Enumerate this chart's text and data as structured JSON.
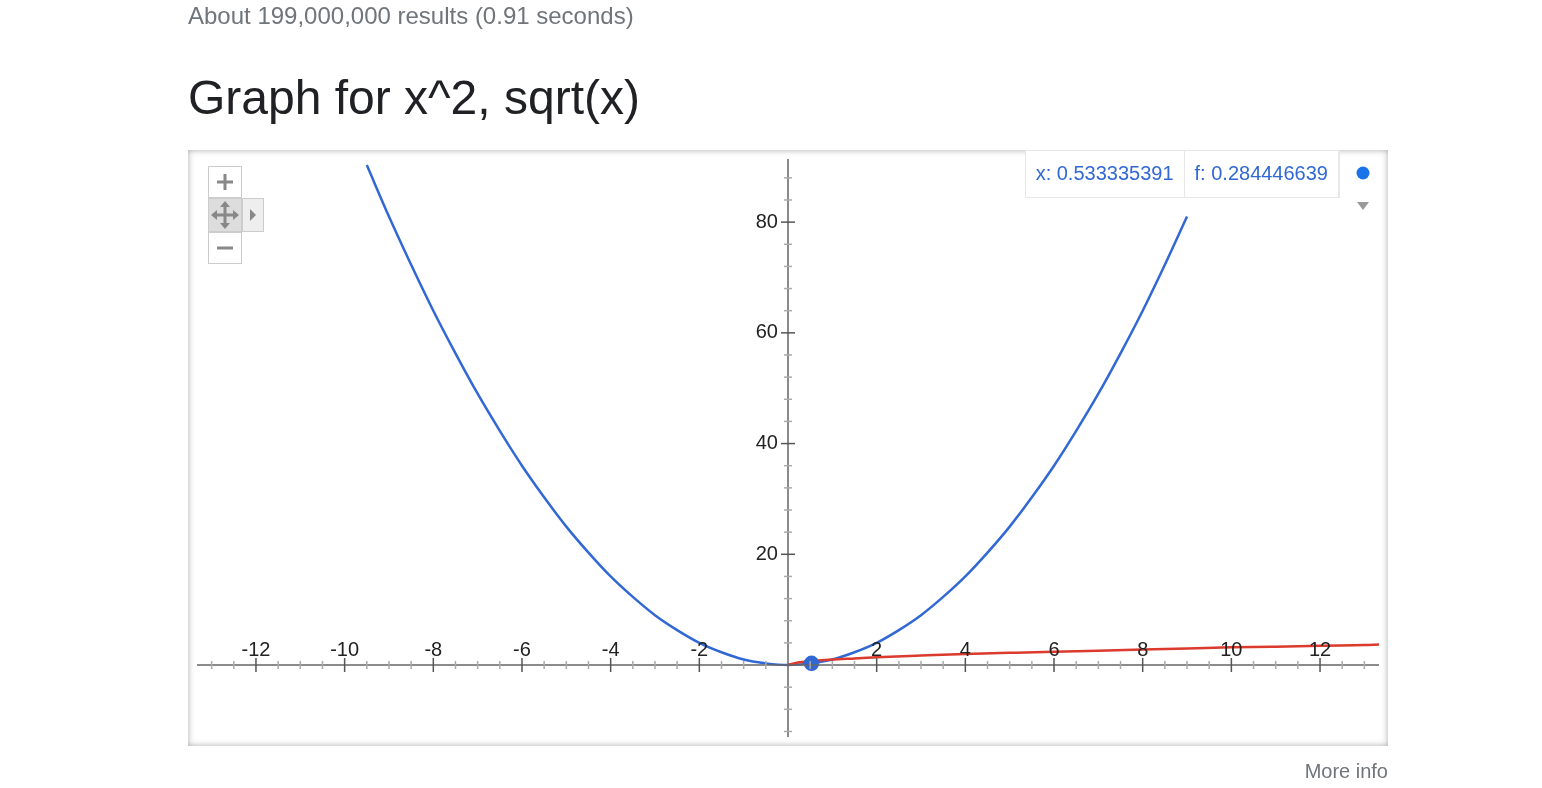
{
  "chart_data": {
    "type": "line",
    "title": "Graph for x^2, sqrt(x)",
    "annotations": [
      "About 199,000,000 results (0.91 seconds)",
      "x: 0.533335391",
      "f: 0.284446639",
      "More info"
    ],
    "xlim": [
      -13.33,
      13.33
    ],
    "ylim": [
      -13,
      91.4
    ],
    "xticks": [
      {
        "value": -13,
        "label": null
      },
      {
        "value": -12.5,
        "label": null
      },
      -12,
      {
        "value": -11.5,
        "label": null
      },
      {
        "value": -11,
        "label": null
      },
      {
        "value": -10.5,
        "label": null
      },
      -10,
      {
        "value": -9.5,
        "label": null
      },
      {
        "value": -9,
        "label": null
      },
      {
        "value": -8.5,
        "label": null
      },
      -8,
      {
        "value": -7.5,
        "label": null
      },
      {
        "value": -7,
        "label": null
      },
      {
        "value": -6.5,
        "label": null
      },
      -6,
      {
        "value": -5.5,
        "label": null
      },
      {
        "value": -5,
        "label": null
      },
      {
        "value": -4.5,
        "label": null
      },
      -4,
      {
        "value": -3.5,
        "label": null
      },
      {
        "value": -3,
        "label": null
      },
      {
        "value": -2.5,
        "label": null
      },
      -2,
      {
        "value": -1.5,
        "label": null
      },
      {
        "value": -1,
        "label": null
      },
      {
        "value": -0.5,
        "label": null
      },
      {
        "value": 0.5,
        "label": null
      },
      {
        "value": 1,
        "label": null
      },
      {
        "value": 1.5,
        "label": null
      },
      2,
      {
        "value": 2.5,
        "label": null
      },
      {
        "value": 3,
        "label": null
      },
      {
        "value": 3.5,
        "label": null
      },
      4,
      {
        "value": 4.5,
        "label": null
      },
      {
        "value": 5,
        "label": null
      },
      {
        "value": 5.5,
        "label": null
      },
      6,
      {
        "value": 6.5,
        "label": null
      },
      {
        "value": 7,
        "label": null
      },
      {
        "value": 7.5,
        "label": null
      },
      8,
      {
        "value": 8.5,
        "label": null
      },
      {
        "value": 9,
        "label": null
      },
      {
        "value": 9.5,
        "label": null
      },
      10,
      {
        "value": 10.5,
        "label": null
      },
      {
        "value": 11,
        "label": null
      },
      {
        "value": 11.5,
        "label": null
      },
      12,
      {
        "value": 12.5,
        "label": null
      },
      {
        "value": 13,
        "label": null
      }
    ],
    "yticks": [
      {
        "value": -12,
        "label": null
      },
      {
        "value": -8,
        "label": null
      },
      {
        "value": -4,
        "label": null
      },
      {
        "value": 4,
        "label": null
      },
      {
        "value": 8,
        "label": null
      },
      {
        "value": 12,
        "label": null
      },
      {
        "value": 16,
        "label": null
      },
      20,
      {
        "value": 24,
        "label": null
      },
      {
        "value": 28,
        "label": null
      },
      {
        "value": 32,
        "label": null
      },
      {
        "value": 36,
        "label": null
      },
      40,
      {
        "value": 44,
        "label": null
      },
      {
        "value": 48,
        "label": null
      },
      {
        "value": 52,
        "label": null
      },
      {
        "value": 56,
        "label": null
      },
      60,
      {
        "value": 64,
        "label": null
      },
      {
        "value": 68,
        "label": null
      },
      {
        "value": 72,
        "label": null
      },
      {
        "value": 76,
        "label": null
      },
      80,
      {
        "value": 84,
        "label": null
      },
      {
        "value": 88,
        "label": null
      }
    ],
    "series": [
      {
        "color": "#3168d4",
        "x": [
          -9.5,
          -9,
          -8.5,
          -8,
          -7.5,
          -7,
          -6.5,
          -6,
          -5.5,
          -5,
          -4.5,
          -4,
          -3.5,
          -3,
          -2.5,
          -2,
          -1.5,
          -1,
          -0.5,
          0,
          0.5,
          1,
          1.5,
          2,
          2.5,
          3,
          3.5,
          4,
          4.5,
          5,
          5.5,
          6,
          6.5,
          7,
          7.5,
          8,
          8.5,
          9
        ],
        "values": [
          90.3,
          81,
          72.3,
          64,
          56.3,
          49,
          42.3,
          36,
          30.3,
          25,
          20.3,
          16,
          12.3,
          9,
          6.3,
          4,
          2.3,
          1,
          0.3,
          0,
          0.3,
          1,
          2.3,
          4,
          6.3,
          9,
          12.3,
          16,
          20.3,
          25,
          30.3,
          36,
          42.3,
          49,
          56.3,
          64,
          72.3,
          81
        ]
      },
      {
        "color": "#db3a2c",
        "x": [
          0,
          0.25,
          0.5,
          1,
          1.5,
          2,
          3,
          4,
          5,
          6,
          7,
          8,
          9,
          10,
          11,
          12,
          13,
          13.33
        ],
        "values": [
          0,
          0.5,
          0.7,
          1,
          1.2,
          1.4,
          1.7,
          2,
          2.2,
          2.4,
          2.6,
          2.8,
          3,
          3.2,
          3.3,
          3.5,
          3.6,
          3.7
        ]
      },
      {
        "type": "scatter",
        "color": "#3168d4",
        "x": [
          0.53
        ],
        "values": [
          0.3
        ]
      }
    ]
  }
}
